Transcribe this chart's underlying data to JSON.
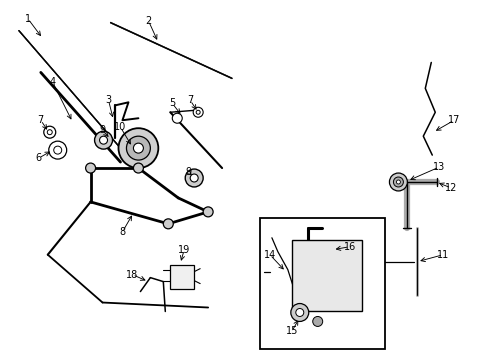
{
  "bg": "#ffffff",
  "lc": "#000000",
  "gray": "#888888",
  "part_fill": "#d8d8d8",
  "box_fill": "#f0f0f0",
  "labels": [
    [
      "1",
      27,
      18,
      42,
      38
    ],
    [
      "2",
      148,
      20,
      158,
      42
    ],
    [
      "3",
      108,
      100,
      113,
      120
    ],
    [
      "4",
      52,
      82,
      72,
      122
    ],
    [
      "5",
      172,
      103,
      182,
      116
    ],
    [
      "6",
      38,
      158,
      52,
      150
    ],
    [
      "7",
      40,
      120,
      48,
      132
    ],
    [
      "7",
      190,
      100,
      198,
      112
    ],
    [
      "8",
      122,
      232,
      133,
      213
    ],
    [
      "9",
      102,
      130,
      110,
      139
    ],
    [
      "9",
      188,
      172,
      194,
      177
    ],
    [
      "10",
      120,
      127,
      132,
      147
    ],
    [
      "11",
      444,
      255,
      418,
      262
    ],
    [
      "12",
      452,
      188,
      437,
      182
    ],
    [
      "13",
      440,
      167,
      408,
      181
    ],
    [
      "14",
      270,
      255,
      286,
      272
    ],
    [
      "15",
      292,
      332,
      300,
      318
    ],
    [
      "16",
      350,
      247,
      333,
      250
    ],
    [
      "17",
      455,
      120,
      434,
      132
    ],
    [
      "18",
      132,
      275,
      148,
      282
    ],
    [
      "19",
      184,
      250,
      180,
      264
    ]
  ]
}
